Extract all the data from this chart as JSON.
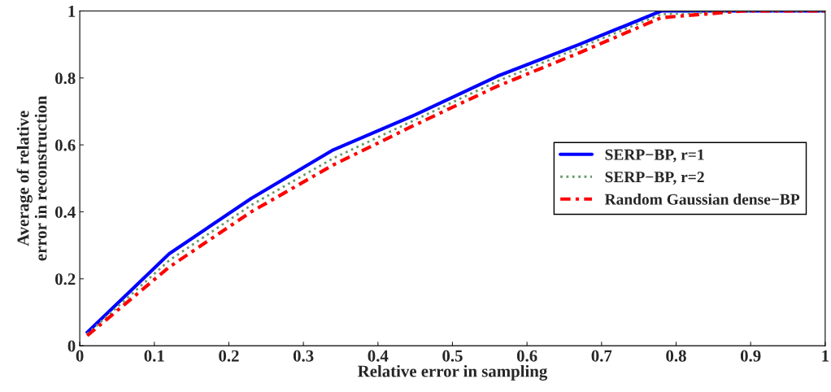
{
  "chart_data": {
    "type": "line",
    "xlabel": "Relative error in sampling",
    "ylabel": "Average of relative\nerror in reconstruction",
    "x": [
      0.01,
      0.12,
      0.23,
      0.34,
      0.45,
      0.56,
      0.67,
      0.78,
      0.89,
      1.0
    ],
    "series": [
      {
        "name": "SERP−BP, r=1",
        "color": "#0000ff",
        "line_style": "solid",
        "values": [
          0.04,
          0.275,
          0.44,
          0.585,
          0.69,
          0.805,
          0.9,
          1.0,
          1.0,
          1.0
        ]
      },
      {
        "name": "SERP−BP, r=2",
        "color": "#6a9a6a",
        "line_style": "dotted",
        "values": [
          0.035,
          0.255,
          0.42,
          0.56,
          0.675,
          0.79,
          0.89,
          0.99,
          1.0,
          1.0
        ]
      },
      {
        "name": "Random Gaussian dense−BP",
        "color": "#ff0000",
        "line_style": "dashed",
        "values": [
          0.03,
          0.235,
          0.4,
          0.54,
          0.66,
          0.775,
          0.875,
          0.98,
          1.0,
          1.0
        ]
      }
    ],
    "xlim": [
      0,
      1
    ],
    "xticks": [
      0,
      0.1,
      0.2,
      0.3,
      0.4,
      0.5,
      0.6,
      0.7,
      0.8,
      0.9,
      1
    ],
    "ylim": [
      0,
      1
    ],
    "yticks": [
      0,
      0.2,
      0.4,
      0.6,
      0.8,
      1
    ],
    "grid": false,
    "legend": "right",
    "marker": "none"
  }
}
